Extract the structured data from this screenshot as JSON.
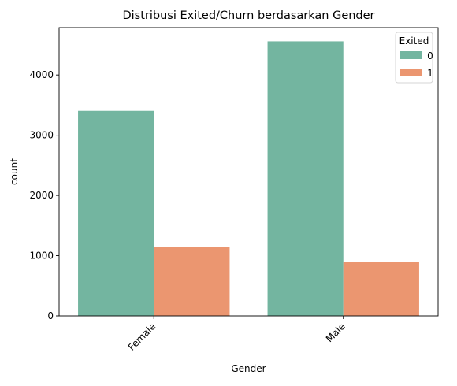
{
  "chart_data": {
    "type": "bar",
    "title": "Distribusi Exited/Churn berdasarkan Gender",
    "xlabel": "Gender",
    "ylabel": "count",
    "categories": [
      "Female",
      "Male"
    ],
    "series": [
      {
        "name": "0",
        "values": [
          3404,
          4559
        ],
        "color": "#73b5a0"
      },
      {
        "name": "1",
        "values": [
          1139,
          898
        ],
        "color": "#eb9670"
      }
    ],
    "ylim": [
      0,
      4787
    ],
    "yticks": [
      0,
      1000,
      2000,
      3000,
      4000
    ],
    "grid": false,
    "legend": {
      "title": "Exited",
      "placement": "top-right"
    }
  }
}
